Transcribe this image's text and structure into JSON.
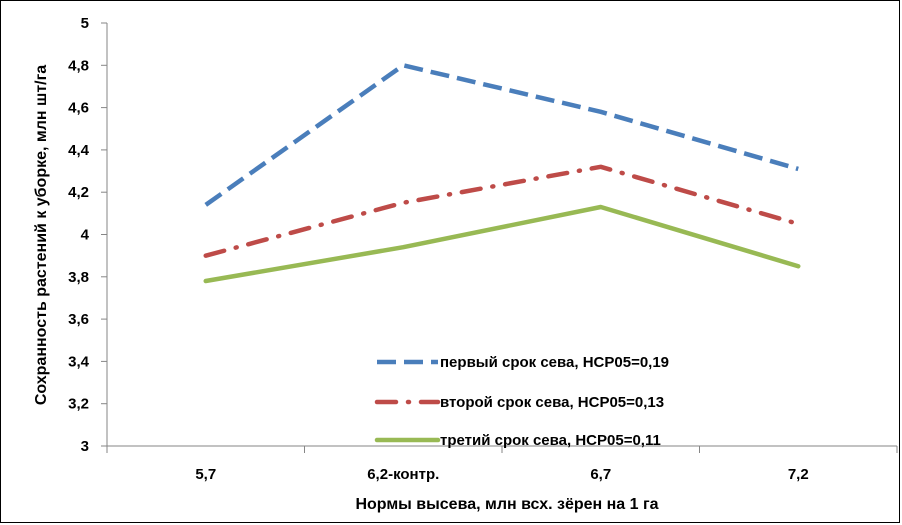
{
  "chart_data": {
    "type": "line",
    "title": "",
    "xlabel": "Нормы высева, млн всх. зёрен на 1 га",
    "ylabel": "Сохранность растений к уборке, млн шт/га",
    "categories": [
      "5,7",
      "6,2-контр.",
      "6,7",
      "7,2"
    ],
    "ylim": [
      3,
      5
    ],
    "yticks": [
      3,
      3.2,
      3.4,
      3.6,
      3.8,
      4,
      4.2,
      4.4,
      4.6,
      4.8,
      5
    ],
    "ytick_labels": [
      "3",
      "3,2",
      "3,4",
      "3,6",
      "3,8",
      "4",
      "4,2",
      "4,4",
      "4,6",
      "4,8",
      "5"
    ],
    "grid": false,
    "legend_position": "bottom-right",
    "series": [
      {
        "name": "первый срок сева, НСР05=0,19",
        "values": [
          4.14,
          4.8,
          4.58,
          4.31
        ],
        "color": "#4a7ebb",
        "style": "dashed"
      },
      {
        "name": "второй срок сева, НСР05=0,13",
        "values": [
          3.9,
          4.15,
          4.32,
          4.05
        ],
        "color": "#be4b48",
        "style": "dash-dot"
      },
      {
        "name": "третий срок сева, НСР05=0,11",
        "values": [
          3.78,
          3.94,
          4.13,
          3.85
        ],
        "color": "#98b954",
        "style": "solid"
      }
    ]
  }
}
